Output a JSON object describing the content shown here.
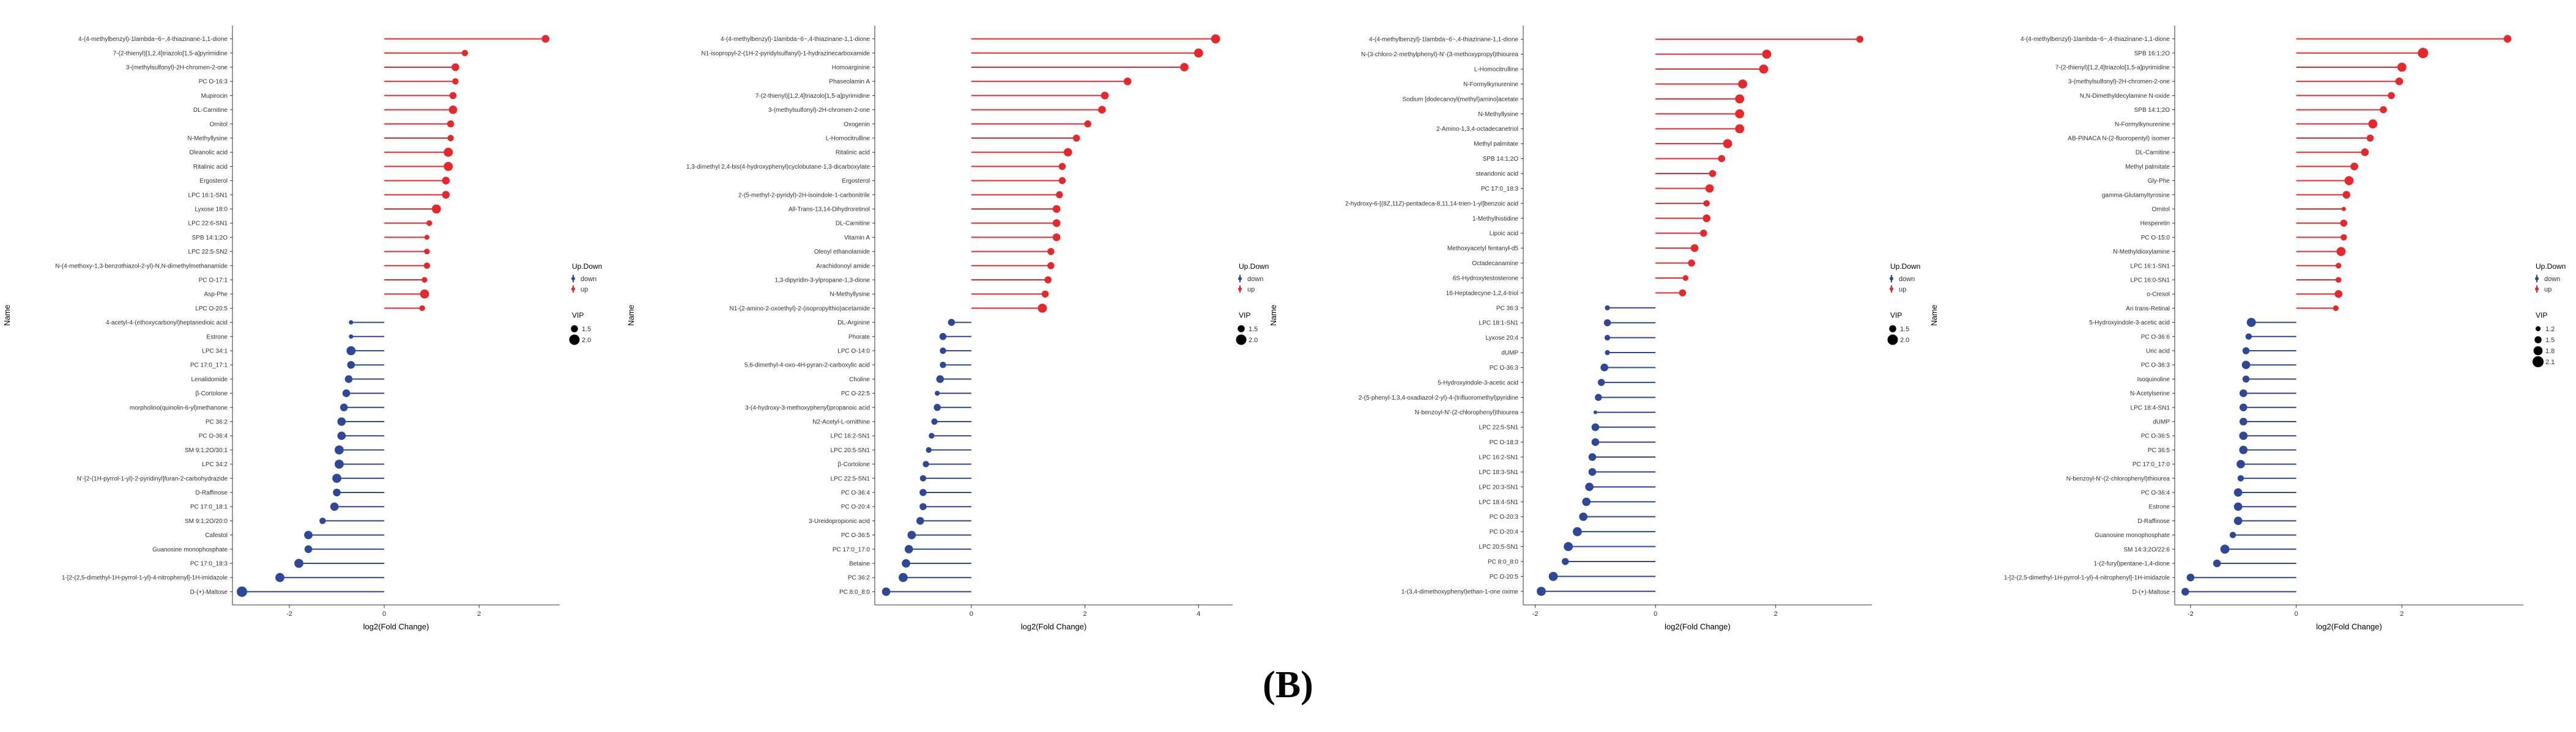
{
  "figure": {
    "panel_label": "(B)"
  },
  "colors": {
    "up": "#e8272a",
    "down": "#2e4799",
    "axis": "#333333",
    "text": "#333333"
  },
  "chart_data": [
    {
      "type": "lollipop",
      "xlabel": "log2(Fold Change)",
      "ylabel": "Name",
      "xlim": [
        -3.2,
        3.7
      ],
      "xticks": [
        -2,
        0,
        2
      ],
      "legend": {
        "updown_title": "Up.Down",
        "updown_labels": [
          "down",
          "up"
        ],
        "vip_title": "VIP",
        "vip_values": [
          1.5,
          2.0
        ]
      },
      "names": [
        "4-(4-methylbenzyl)-1lambda~6~,4-thiazinane-1,1-dione",
        "7-(2-thienyl)[1,2,4]triazolo[1,5-a]pyrimidine",
        "3-(methylsulfonyl)-2H-chromen-2-one",
        "PC O-16:3",
        "Mupirocin",
        "DL-Carnitine",
        "Ornitol",
        "N-Methyllysine",
        "Oleanolic acid",
        "Ritalinic acid",
        "Ergosterol",
        "LPC 16:1-SN1",
        "Lyxose 18:0",
        "LPC 22:6-SN1",
        "SPB 14:1;2O",
        "LPC 22:5-SN2",
        "N-(4-methoxy-1,3-benzothiazol-2-yl)-N,N-dimethylmethanamide",
        "PC O-17:1",
        "Asp-Phe",
        "LPC O-20:5",
        "4-acetyl-4-(ethoxycarbonyl)heptanedioic acid",
        "Estrone",
        "LPC 34:1",
        "PC 17:0_17:1",
        "Lenalidomide",
        "β-Cortolone",
        "morpholino(quinolin-6-yl)methanone",
        "PC 36:2",
        "PC O-36:4",
        "SM 9:1;2O/30:1",
        "LPC 34:2",
        "N'-[2-(1H-pyrrol-1-yl)-2-pyridinyl]furan-2-carbohydrazide",
        "D-Raffinose",
        "PC 17:0_18:1",
        "SM 9:1;2O/20:0",
        "Cafestol",
        "Guanosine monophosphate",
        "PC 17:0_18:3",
        "1-[2-(2,5-dimethyl-1H-pyrrol-1-yl)-4-nitrophenyl]-1H-imidazole",
        "D-(+)-Maltose"
      ],
      "fold_change": [
        3.4,
        1.7,
        1.5,
        1.5,
        1.45,
        1.45,
        1.4,
        1.4,
        1.35,
        1.35,
        1.3,
        1.3,
        1.1,
        0.95,
        0.9,
        0.9,
        0.9,
        0.85,
        0.85,
        0.8,
        -0.7,
        -0.7,
        -0.7,
        -0.7,
        -0.75,
        -0.8,
        -0.85,
        -0.9,
        -0.9,
        -0.95,
        -0.95,
        -1.0,
        -1.0,
        -1.05,
        -1.3,
        -1.6,
        -1.6,
        -1.8,
        -2.2,
        -3.0
      ],
      "vip": [
        1.6,
        1.4,
        1.6,
        1.4,
        1.5,
        1.7,
        1.5,
        1.4,
        1.8,
        1.8,
        1.6,
        1.6,
        1.8,
        1.3,
        1.2,
        1.3,
        1.4,
        1.3,
        1.8,
        1.3,
        1.1,
        1.1,
        1.8,
        1.6,
        1.6,
        1.6,
        1.6,
        1.7,
        1.7,
        1.8,
        1.8,
        1.8,
        1.6,
        1.7,
        1.4,
        1.7,
        1.6,
        1.8,
        1.8,
        2.0
      ],
      "direction": [
        "up",
        "up",
        "up",
        "up",
        "up",
        "up",
        "up",
        "up",
        "up",
        "up",
        "up",
        "up",
        "up",
        "up",
        "up",
        "up",
        "up",
        "up",
        "up",
        "up",
        "down",
        "down",
        "down",
        "down",
        "down",
        "down",
        "down",
        "down",
        "down",
        "down",
        "down",
        "down",
        "down",
        "down",
        "down",
        "down",
        "down",
        "down",
        "down",
        "down"
      ]
    },
    {
      "type": "lollipop",
      "xlabel": "log2(Fold Change)",
      "ylabel": "Name",
      "xlim": [
        -1.7,
        4.6
      ],
      "xticks": [
        0,
        2,
        4
      ],
      "legend": {
        "updown_title": "Up.Down",
        "updown_labels": [
          "down",
          "up"
        ],
        "vip_title": "VIP",
        "vip_values": [
          1.5,
          2.0
        ]
      },
      "names": [
        "4-(4-methylbenzyl)-1lambda~6~,4-thiazinane-1,1-dione",
        "N1-isopropyl-2-(1H-2-pyridylsulfanyl)-1-hydrazinecarboxamide",
        "Homoarginine",
        "Phaseolamin A",
        "7-(2-thienyl)[1,2,4]triazolo[1,5-a]pyrimidine",
        "3-(methylsulfonyl)-2H-chromen-2-one",
        "Oxogenin",
        "L-Homocitrulline",
        "Ritalinic acid",
        "1,3-dimethyl 2,4-bis(4-hydroxyphenyl)cyclobutane-1,3-dicarboxylate",
        "Ergosterol",
        "2-(5-methyl-2-pyridyl)-2H-isoindole-1-carbonitrile",
        "All-Trans-13,14-Dihydroretinol",
        "DL-Carnitine",
        "Vitamin A",
        "Oleoyl ethanolamide",
        "Arachidonoyl amide",
        "1,3-dipyridin-3-ylpropane-1,3-dione",
        "N-Methyllysine",
        "N1-(2-amino-2-oxoethyl)-2-(isopropylthio)acetamide",
        "DL-Arginine",
        "Phorate",
        "LPC O-14:0",
        "5,6-dimethyl-4-oxo-4H-pyran-2-carboxylic acid",
        "Choline",
        "PC O-22:5",
        "3-(4-hydroxy-3-methoxyphenyl)propanoic acid",
        "N2-Acetyl-L-ornithine",
        "LPC 16:2-SN1",
        "LPC 20:5-SN1",
        "β-Cortolone",
        "LPC 22:5-SN1",
        "PC O-36:4",
        "PC O-20:4",
        "3-Ureidopropionic acid",
        "PC O-36:5",
        "PC 17:0_17:0",
        "Betaine",
        "PC 36:2",
        "PC 8:0_8:0"
      ],
      "fold_change": [
        4.3,
        4.0,
        3.75,
        2.75,
        2.35,
        2.3,
        2.05,
        1.85,
        1.7,
        1.6,
        1.6,
        1.55,
        1.5,
        1.5,
        1.5,
        1.4,
        1.4,
        1.35,
        1.3,
        1.25,
        -0.35,
        -0.5,
        -0.5,
        -0.5,
        -0.55,
        -0.6,
        -0.6,
        -0.65,
        -0.7,
        -0.75,
        -0.8,
        -0.85,
        -0.85,
        -0.85,
        -0.9,
        -1.05,
        -1.1,
        -1.15,
        -1.2,
        -1.5
      ],
      "vip": [
        1.8,
        1.8,
        1.7,
        1.6,
        1.6,
        1.6,
        1.5,
        1.5,
        1.7,
        1.5,
        1.5,
        1.5,
        1.6,
        1.6,
        1.6,
        1.5,
        1.5,
        1.5,
        1.5,
        1.8,
        1.5,
        1.5,
        1.4,
        1.4,
        1.6,
        1.2,
        1.5,
        1.4,
        1.3,
        1.3,
        1.4,
        1.4,
        1.5,
        1.5,
        1.6,
        1.7,
        1.7,
        1.7,
        1.8,
        1.7
      ],
      "direction": [
        "up",
        "up",
        "up",
        "up",
        "up",
        "up",
        "up",
        "up",
        "up",
        "up",
        "up",
        "up",
        "up",
        "up",
        "up",
        "up",
        "up",
        "up",
        "up",
        "up",
        "down",
        "down",
        "down",
        "down",
        "down",
        "down",
        "down",
        "down",
        "down",
        "down",
        "down",
        "down",
        "down",
        "down",
        "down",
        "down",
        "down",
        "down",
        "down",
        "down"
      ]
    },
    {
      "type": "lollipop",
      "xlabel": "log2(Fold Change)",
      "ylabel": "Name",
      "xlim": [
        -2.2,
        3.6
      ],
      "xticks": [
        -2,
        0,
        2
      ],
      "legend": {
        "updown_title": "Up.Down",
        "updown_labels": [
          "down",
          "up"
        ],
        "vip_title": "VIP",
        "vip_values": [
          1.5,
          2.0
        ]
      },
      "names": [
        "4-(4-methylbenzyl)-1lambda~6~,4-thiazinane-1,1-dione",
        "N-(3-chloro-2-methylphenyl)-N'-(3-methoxypropyl)thiourea",
        "L-Homocitrulline",
        "N-Formylkynurenine",
        "Sodium [dodecanoyl(methyl)amino]acetate",
        "N-Methyllysine",
        "2-Amino-1,3,4-octadecanetriol",
        "Methyl palmitate",
        "SPB 14:1;2O",
        "stearidonic acid",
        "PC 17:0_18:3",
        "2-hydroxy-6-[(8Z,11Z)-pentadeca-8,11,14-trien-1-yl]benzoic acid",
        "1-Methylhistidine",
        "Lipoic acid",
        "Methoxyacetyl fentanyl-d5",
        "Octadecanamine",
        "6S-Hydroxytestosterone",
        "16-Heptadecyne-1,2,4-triol",
        "PC 36:3",
        "LPC 18:1-SN1",
        "Lyxose 20:4",
        "dUMP",
        "PC O-36:3",
        "5-Hydroxyindole-3-acetic acid",
        "2-(5-phenyl-1,3,4-oxadiazol-2-yl)-4-(trifluoromethyl)pyridine",
        "N-benzoyl-N'-(2-chlorophenyl)thiourea",
        "LPC 22:5-SN1",
        "PC O-18:3",
        "LPC 16:2-SN1",
        "LPC 18:3-SN1",
        "LPC 20:3-SN1",
        "LPC 18:4-SN1",
        "PC O-20:3",
        "PC O-20:4",
        "LPC 20:5-SN1",
        "PC 8:0_8:0",
        "PC O-20:5",
        "1-(3,4-dimethoxyphenyl)ethan-1-one oxime"
      ],
      "fold_change": [
        3.4,
        1.85,
        1.8,
        1.45,
        1.4,
        1.4,
        1.4,
        1.2,
        1.1,
        0.95,
        0.9,
        0.85,
        0.85,
        0.8,
        0.65,
        0.6,
        0.5,
        0.45,
        -0.8,
        -0.8,
        -0.8,
        -0.8,
        -0.85,
        -0.9,
        -0.95,
        -1.0,
        -1.0,
        -1.0,
        -1.05,
        -1.05,
        -1.1,
        -1.15,
        -1.2,
        -1.3,
        -1.45,
        -1.5,
        -1.7,
        -1.9
      ],
      "vip": [
        1.5,
        1.8,
        1.8,
        1.8,
        1.8,
        1.8,
        1.8,
        1.8,
        1.5,
        1.5,
        1.7,
        1.4,
        1.6,
        1.5,
        1.6,
        1.5,
        1.3,
        1.5,
        1.2,
        1.5,
        1.3,
        1.2,
        1.6,
        1.5,
        1.5,
        1.0,
        1.6,
        1.6,
        1.6,
        1.6,
        1.7,
        1.7,
        1.7,
        1.8,
        1.8,
        1.5,
        1.8,
        1.8
      ],
      "direction": [
        "up",
        "up",
        "up",
        "up",
        "up",
        "up",
        "up",
        "up",
        "up",
        "up",
        "up",
        "up",
        "up",
        "up",
        "up",
        "up",
        "up",
        "up",
        "down",
        "down",
        "down",
        "down",
        "down",
        "down",
        "down",
        "down",
        "down",
        "down",
        "down",
        "down",
        "down",
        "down",
        "down",
        "down",
        "down",
        "down",
        "down",
        "down"
      ]
    },
    {
      "type": "lollipop",
      "xlabel": "log2(Fold Change)",
      "ylabel": "Name",
      "xlim": [
        -2.3,
        4.3
      ],
      "xticks": [
        -2,
        0,
        2
      ],
      "legend": {
        "updown_title": "Up.Down",
        "updown_labels": [
          "down",
          "up"
        ],
        "vip_title": "VIP",
        "vip_values": [
          1.2,
          1.5,
          1.8,
          2.1
        ]
      },
      "names": [
        "4-(4-methylbenzyl)-1lambda~6~,4-thiazinane-1,1-dione",
        "SPB 16:1;2O",
        "7-(2-thienyl)[1,2,4]triazolo[1,5-a]pyrimidine",
        "3-(methylsulfonyl)-2H-chromen-2-one",
        "N,N-Dimethyldecylamine N-oxide",
        "SPB 14:1;2O",
        "N-Formylkynurenine",
        "AB-PINACA N-(2-fluoropentyl) isomer",
        "DL-Carnitine",
        "Methyl palmitate",
        "Gly-Phe",
        "gamma-Glutamyltyrosine",
        "Ornitol",
        "Hesperetin",
        "PC O-15:0",
        "N-Methyldioxylamine",
        "LPC 16:1-SN1",
        "LPC 16:0-SN1",
        "o-Cresol",
        "Ari trans-Retinal",
        "5-Hydroxyindole-3-acetic acid",
        "PC O-36:6",
        "Uric acid",
        "PC O-36:3",
        "Isoquinoline",
        "N-Acetylserine",
        "LPC 18:4-SN1",
        "dUMP",
        "PC O-36:5",
        "PC 36:5",
        "PC 17:0_17:0",
        "N-benzoyl-N'-(2-chlorophenyl)thiourea",
        "PC O-36:4",
        "Estrone",
        "D-Raffinose",
        "Guanosine monophosphate",
        "SM 14:3;2O/22:6",
        "1-(2-furyl)pentane-1,4-dione",
        "1-[2-(2,5-dimethyl-1H-pyrrol-1-yl)-4-nitrophenyl]-1H-imidazole",
        "D-(+)-Maltose"
      ],
      "fold_change": [
        4.0,
        2.4,
        2.0,
        1.95,
        1.8,
        1.65,
        1.45,
        1.4,
        1.3,
        1.1,
        1.0,
        0.95,
        0.9,
        0.9,
        0.9,
        0.85,
        0.8,
        0.8,
        0.8,
        0.75,
        -0.85,
        -0.9,
        -0.95,
        -0.95,
        -0.95,
        -1.0,
        -1.0,
        -1.0,
        -1.0,
        -1.0,
        -1.05,
        -1.05,
        -1.1,
        -1.1,
        -1.1,
        -1.2,
        -1.35,
        -1.5,
        -2.0,
        -2.1
      ],
      "vip": [
        1.6,
        2.0,
        1.8,
        1.6,
        1.5,
        1.5,
        1.8,
        1.5,
        1.6,
        1.6,
        1.8,
        1.6,
        1.1,
        1.5,
        1.4,
        1.8,
        1.3,
        1.3,
        1.6,
        1.3,
        1.8,
        1.4,
        1.5,
        1.7,
        1.5,
        1.6,
        1.6,
        1.6,
        1.7,
        1.7,
        1.7,
        1.4,
        1.7,
        1.7,
        1.7,
        1.4,
        1.8,
        1.6,
        1.6,
        1.6
      ],
      "direction": [
        "up",
        "up",
        "up",
        "up",
        "up",
        "up",
        "up",
        "up",
        "up",
        "up",
        "up",
        "up",
        "up",
        "up",
        "up",
        "up",
        "up",
        "up",
        "up",
        "up",
        "down",
        "down",
        "down",
        "down",
        "down",
        "down",
        "down",
        "down",
        "down",
        "down",
        "down",
        "down",
        "down",
        "down",
        "down",
        "down",
        "down",
        "down",
        "down",
        "down"
      ]
    }
  ]
}
